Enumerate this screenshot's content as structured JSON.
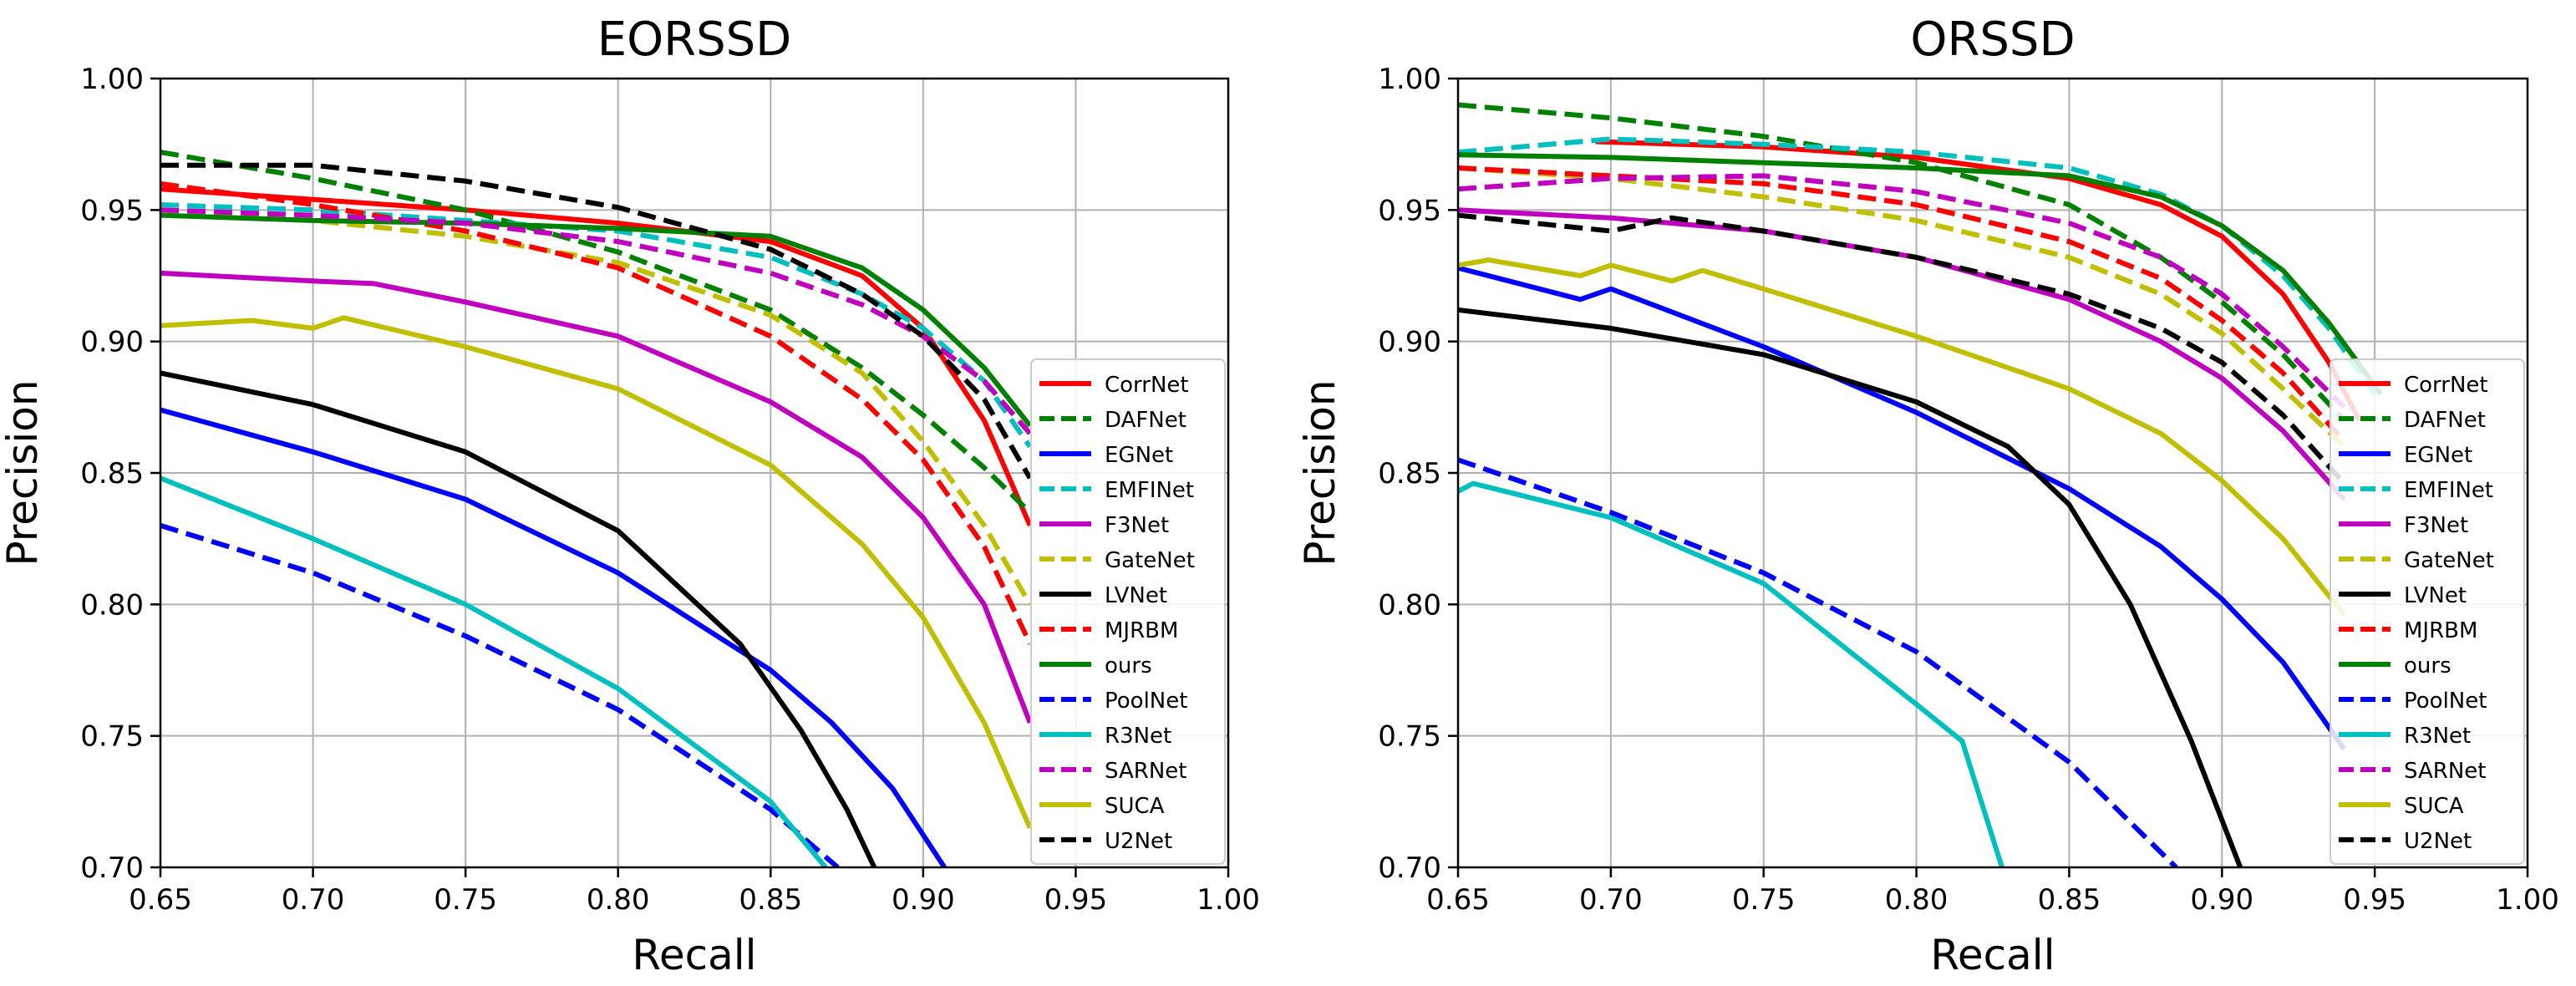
{
  "chart_data": [
    {
      "type": "line",
      "title": "EORSSD",
      "xlabel": "Recall",
      "ylabel": "Precision",
      "xlim": [
        0.65,
        1.0
      ],
      "ylim": [
        0.7,
        1.0
      ],
      "xticks": [
        "0.65",
        "0.70",
        "0.75",
        "0.80",
        "0.85",
        "0.90",
        "0.95",
        "1.00"
      ],
      "yticks": [
        "0.70",
        "0.75",
        "0.80",
        "0.85",
        "0.90",
        "0.95",
        "1.00"
      ],
      "grid": true,
      "legend_position": "lower-right",
      "series": [
        {
          "name": "CorrNet",
          "color": "#ff0000",
          "dash": "solid",
          "x": [
            0.65,
            0.7,
            0.75,
            0.8,
            0.85,
            0.88,
            0.9,
            0.92,
            0.935
          ],
          "y": [
            0.958,
            0.954,
            0.95,
            0.945,
            0.938,
            0.925,
            0.905,
            0.87,
            0.83
          ]
        },
        {
          "name": "DAFNet",
          "color": "#008000",
          "dash": "dashed",
          "x": [
            0.65,
            0.7,
            0.75,
            0.8,
            0.85,
            0.88,
            0.9,
            0.92,
            0.935
          ],
          "y": [
            0.972,
            0.962,
            0.95,
            0.934,
            0.912,
            0.89,
            0.872,
            0.852,
            0.835
          ]
        },
        {
          "name": "EGNet",
          "color": "#0000ff",
          "dash": "solid",
          "x": [
            0.65,
            0.7,
            0.75,
            0.8,
            0.85,
            0.87,
            0.89,
            0.907
          ],
          "y": [
            0.874,
            0.858,
            0.84,
            0.812,
            0.775,
            0.755,
            0.73,
            0.7
          ]
        },
        {
          "name": "EMFINet",
          "color": "#00bfbf",
          "dash": "dashed",
          "x": [
            0.65,
            0.7,
            0.75,
            0.8,
            0.85,
            0.88,
            0.9,
            0.92,
            0.935
          ],
          "y": [
            0.952,
            0.95,
            0.946,
            0.942,
            0.932,
            0.918,
            0.905,
            0.885,
            0.86
          ]
        },
        {
          "name": "F3Net",
          "color": "#bf00bf",
          "dash": "solid",
          "x": [
            0.65,
            0.7,
            0.72,
            0.75,
            0.8,
            0.85,
            0.88,
            0.9,
            0.92,
            0.935
          ],
          "y": [
            0.926,
            0.923,
            0.922,
            0.915,
            0.902,
            0.877,
            0.856,
            0.833,
            0.8,
            0.755
          ]
        },
        {
          "name": "GateNet",
          "color": "#bfbf00",
          "dash": "dashed",
          "x": [
            0.65,
            0.7,
            0.75,
            0.8,
            0.85,
            0.88,
            0.9,
            0.92,
            0.935
          ],
          "y": [
            0.95,
            0.946,
            0.94,
            0.93,
            0.91,
            0.888,
            0.862,
            0.83,
            0.8
          ]
        },
        {
          "name": "LVNet",
          "color": "#000000",
          "dash": "solid",
          "x": [
            0.65,
            0.7,
            0.75,
            0.8,
            0.84,
            0.86,
            0.875,
            0.884
          ],
          "y": [
            0.888,
            0.876,
            0.858,
            0.828,
            0.785,
            0.752,
            0.722,
            0.7
          ]
        },
        {
          "name": "MJRBM",
          "color": "#ff0000",
          "dash": "dashed",
          "x": [
            0.65,
            0.7,
            0.75,
            0.8,
            0.85,
            0.88,
            0.9,
            0.92,
            0.935
          ],
          "y": [
            0.96,
            0.952,
            0.942,
            0.928,
            0.902,
            0.878,
            0.855,
            0.822,
            0.785
          ]
        },
        {
          "name": "ours",
          "color": "#008000",
          "dash": "solid",
          "x": [
            0.65,
            0.7,
            0.75,
            0.8,
            0.85,
            0.88,
            0.9,
            0.92,
            0.935
          ],
          "y": [
            0.948,
            0.946,
            0.945,
            0.943,
            0.94,
            0.928,
            0.912,
            0.89,
            0.868
          ]
        },
        {
          "name": "PoolNet",
          "color": "#0000ff",
          "dash": "dashed",
          "x": [
            0.65,
            0.7,
            0.75,
            0.8,
            0.85,
            0.872
          ],
          "y": [
            0.83,
            0.812,
            0.788,
            0.76,
            0.722,
            0.7
          ]
        },
        {
          "name": "R3Net",
          "color": "#00bfbf",
          "dash": "solid",
          "x": [
            0.65,
            0.7,
            0.75,
            0.8,
            0.85,
            0.868
          ],
          "y": [
            0.848,
            0.825,
            0.8,
            0.768,
            0.725,
            0.7
          ]
        },
        {
          "name": "SARNet",
          "color": "#bf00bf",
          "dash": "dashed",
          "x": [
            0.65,
            0.7,
            0.75,
            0.8,
            0.85,
            0.88,
            0.9,
            0.92,
            0.935
          ],
          "y": [
            0.95,
            0.948,
            0.945,
            0.938,
            0.926,
            0.914,
            0.902,
            0.885,
            0.865
          ]
        },
        {
          "name": "SUCA",
          "color": "#bfbf00",
          "dash": "solid",
          "x": [
            0.65,
            0.68,
            0.7,
            0.71,
            0.75,
            0.8,
            0.85,
            0.88,
            0.9,
            0.92,
            0.935
          ],
          "y": [
            0.906,
            0.908,
            0.905,
            0.909,
            0.898,
            0.882,
            0.853,
            0.823,
            0.795,
            0.755,
            0.715
          ]
        },
        {
          "name": "U2Net",
          "color": "#000000",
          "dash": "dashed",
          "x": [
            0.65,
            0.7,
            0.75,
            0.8,
            0.85,
            0.88,
            0.9,
            0.92,
            0.935
          ],
          "y": [
            0.967,
            0.967,
            0.961,
            0.951,
            0.935,
            0.918,
            0.902,
            0.878,
            0.848
          ]
        }
      ]
    },
    {
      "type": "line",
      "title": "ORSSD",
      "xlabel": "Recall",
      "ylabel": "Precision",
      "xlim": [
        0.65,
        1.0
      ],
      "ylim": [
        0.7,
        1.0
      ],
      "xticks": [
        "0.65",
        "0.70",
        "0.75",
        "0.80",
        "0.85",
        "0.90",
        "0.95",
        "1.00"
      ],
      "yticks": [
        "0.70",
        "0.75",
        "0.80",
        "0.85",
        "0.90",
        "0.95",
        "1.00"
      ],
      "grid": true,
      "legend_position": "lower-right",
      "series": [
        {
          "name": "CorrNet",
          "color": "#ff0000",
          "dash": "solid",
          "x": [
            0.695,
            0.75,
            0.8,
            0.85,
            0.88,
            0.9,
            0.92,
            0.935,
            0.945
          ],
          "y": [
            0.976,
            0.974,
            0.97,
            0.962,
            0.952,
            0.94,
            0.918,
            0.892,
            0.87
          ]
        },
        {
          "name": "DAFNet",
          "color": "#008000",
          "dash": "dashed",
          "x": [
            0.65,
            0.7,
            0.75,
            0.8,
            0.85,
            0.88,
            0.9,
            0.92,
            0.94
          ],
          "y": [
            0.99,
            0.985,
            0.978,
            0.968,
            0.952,
            0.932,
            0.915,
            0.895,
            0.87
          ]
        },
        {
          "name": "EGNet",
          "color": "#0000ff",
          "dash": "solid",
          "x": [
            0.65,
            0.69,
            0.7,
            0.75,
            0.8,
            0.85,
            0.88,
            0.9,
            0.92,
            0.94
          ],
          "y": [
            0.928,
            0.916,
            0.92,
            0.898,
            0.873,
            0.844,
            0.822,
            0.802,
            0.778,
            0.745
          ]
        },
        {
          "name": "EMFINet",
          "color": "#00bfbf",
          "dash": "dashed",
          "x": [
            0.65,
            0.7,
            0.75,
            0.8,
            0.85,
            0.88,
            0.9,
            0.92,
            0.935,
            0.95
          ],
          "y": [
            0.972,
            0.977,
            0.975,
            0.972,
            0.966,
            0.956,
            0.944,
            0.925,
            0.905,
            0.88
          ]
        },
        {
          "name": "F3Net",
          "color": "#bf00bf",
          "dash": "solid",
          "x": [
            0.65,
            0.7,
            0.75,
            0.8,
            0.85,
            0.88,
            0.9,
            0.92,
            0.94
          ],
          "y": [
            0.95,
            0.947,
            0.942,
            0.932,
            0.916,
            0.9,
            0.886,
            0.866,
            0.84
          ]
        },
        {
          "name": "GateNet",
          "color": "#bfbf00",
          "dash": "dashed",
          "x": [
            0.65,
            0.7,
            0.75,
            0.8,
            0.85,
            0.88,
            0.9,
            0.92,
            0.94
          ],
          "y": [
            0.966,
            0.962,
            0.955,
            0.946,
            0.932,
            0.918,
            0.903,
            0.882,
            0.86
          ]
        },
        {
          "name": "LVNet",
          "color": "#000000",
          "dash": "solid",
          "x": [
            0.65,
            0.7,
            0.75,
            0.8,
            0.83,
            0.85,
            0.87,
            0.89,
            0.906
          ],
          "y": [
            0.912,
            0.905,
            0.895,
            0.877,
            0.86,
            0.838,
            0.8,
            0.748,
            0.7
          ]
        },
        {
          "name": "MJRBM",
          "color": "#ff0000",
          "dash": "dashed",
          "x": [
            0.65,
            0.7,
            0.75,
            0.8,
            0.85,
            0.88,
            0.9,
            0.92,
            0.94
          ],
          "y": [
            0.966,
            0.963,
            0.96,
            0.952,
            0.938,
            0.924,
            0.908,
            0.888,
            0.862
          ]
        },
        {
          "name": "ours",
          "color": "#008000",
          "dash": "solid",
          "x": [
            0.65,
            0.7,
            0.75,
            0.8,
            0.85,
            0.88,
            0.9,
            0.92,
            0.935,
            0.952
          ],
          "y": [
            0.971,
            0.97,
            0.968,
            0.966,
            0.963,
            0.955,
            0.944,
            0.927,
            0.907,
            0.88
          ]
        },
        {
          "name": "PoolNet",
          "color": "#0000ff",
          "dash": "dashed",
          "x": [
            0.65,
            0.7,
            0.75,
            0.8,
            0.85,
            0.885
          ],
          "y": [
            0.855,
            0.835,
            0.812,
            0.782,
            0.74,
            0.7
          ]
        },
        {
          "name": "R3Net",
          "color": "#00bfbf",
          "dash": "solid",
          "x": [
            0.65,
            0.655,
            0.7,
            0.75,
            0.8,
            0.815,
            0.828
          ],
          "y": [
            0.843,
            0.846,
            0.833,
            0.808,
            0.762,
            0.748,
            0.7
          ]
        },
        {
          "name": "SARNet",
          "color": "#bf00bf",
          "dash": "dashed",
          "x": [
            0.65,
            0.7,
            0.75,
            0.8,
            0.85,
            0.88,
            0.9,
            0.92,
            0.94
          ],
          "y": [
            0.958,
            0.962,
            0.963,
            0.957,
            0.945,
            0.932,
            0.918,
            0.898,
            0.875
          ]
        },
        {
          "name": "SUCA",
          "color": "#bfbf00",
          "dash": "solid",
          "x": [
            0.65,
            0.66,
            0.69,
            0.7,
            0.72,
            0.73,
            0.75,
            0.8,
            0.85,
            0.88,
            0.9,
            0.92,
            0.94
          ],
          "y": [
            0.929,
            0.931,
            0.925,
            0.929,
            0.923,
            0.927,
            0.92,
            0.902,
            0.882,
            0.865,
            0.847,
            0.825,
            0.796
          ]
        },
        {
          "name": "U2Net",
          "color": "#000000",
          "dash": "dashed",
          "x": [
            0.65,
            0.7,
            0.72,
            0.75,
            0.8,
            0.85,
            0.88,
            0.9,
            0.92,
            0.94
          ],
          "y": [
            0.948,
            0.942,
            0.947,
            0.942,
            0.932,
            0.918,
            0.905,
            0.892,
            0.872,
            0.846
          ]
        }
      ]
    }
  ]
}
